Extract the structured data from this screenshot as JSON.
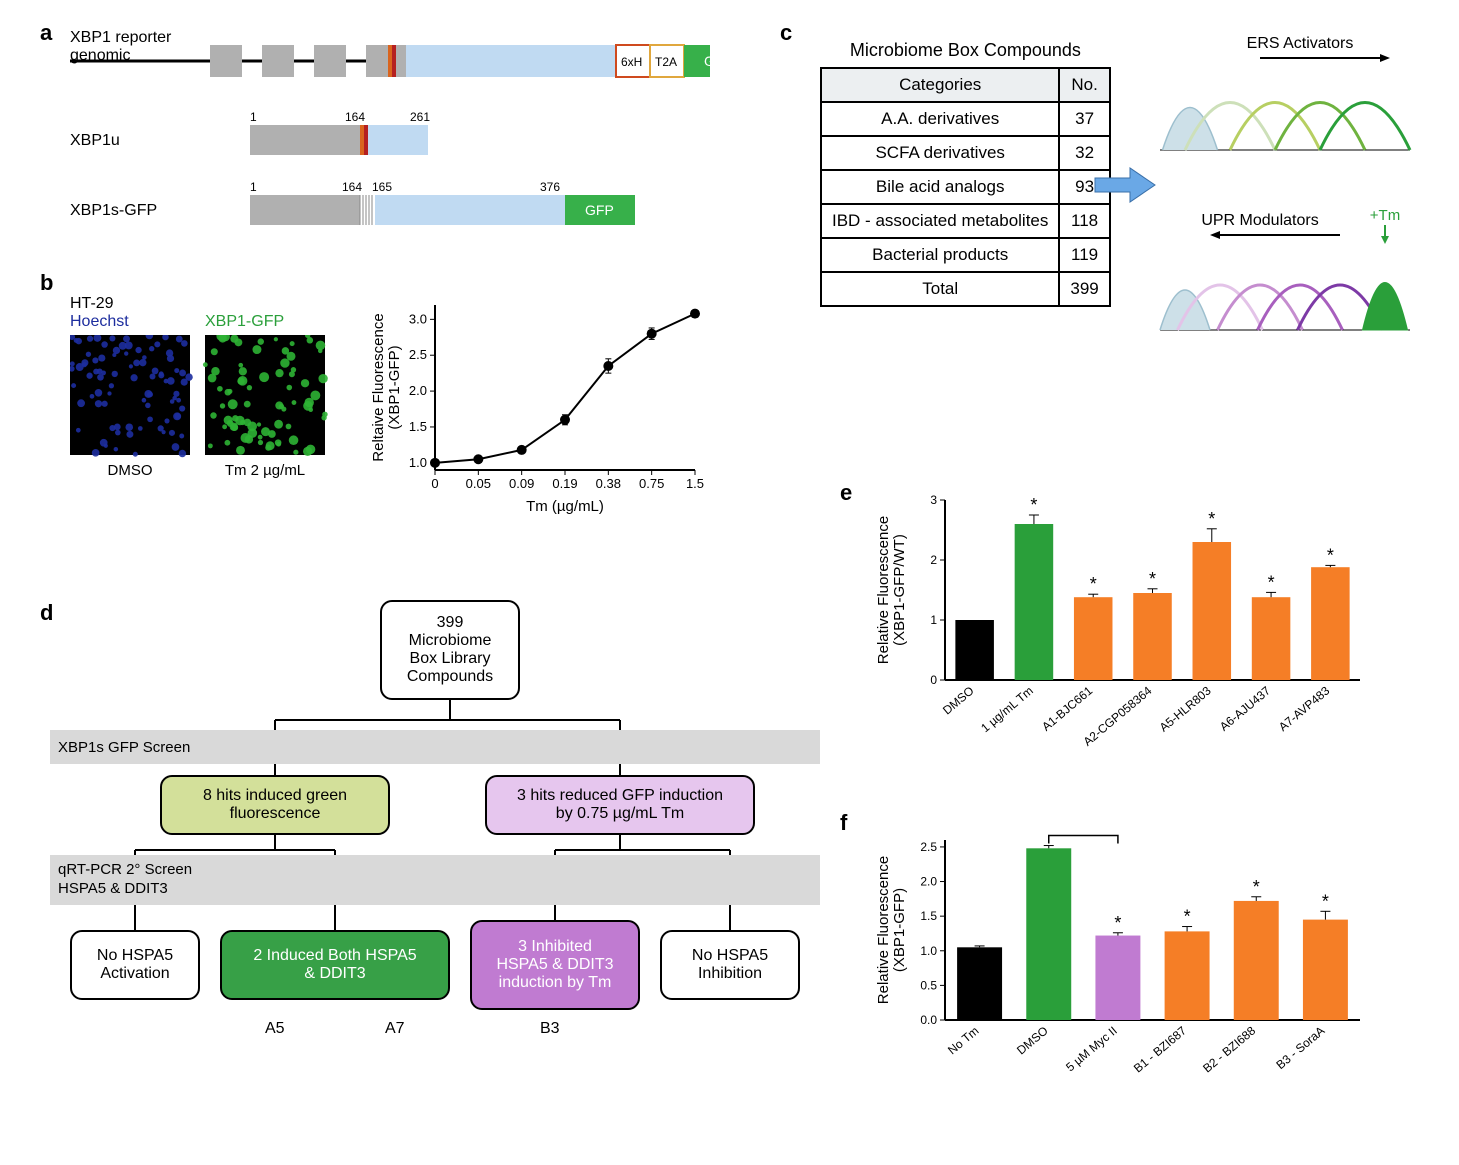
{
  "labels": {
    "a": "a",
    "b": "b",
    "c": "c",
    "d": "d",
    "e": "e",
    "f": "f"
  },
  "panel_a": {
    "tracks": [
      {
        "label": "XBP1 reporter\ngenomic"
      },
      {
        "label": "XBP1u"
      },
      {
        "label": "XBP1s-GFP"
      }
    ],
    "tags": {
      "sixH": "6xH",
      "T2A": "T2A",
      "GFP": "GFP"
    },
    "coords": {
      "n1": "1",
      "n164": "164",
      "n165": "165",
      "n261": "261",
      "n376": "376"
    },
    "colors": {
      "exon_grey": "#b0b0b0",
      "light_blue": "#c0daf2",
      "gfp_green": "#37b04a",
      "orange": "#d9641e",
      "red": "#b52020",
      "sixH_border": "#cf4a1e",
      "t2a_border": "#e0a73d",
      "line": "#000000"
    }
  },
  "panel_b": {
    "img_labels": {
      "cell": "HT-29",
      "hoechst": "Hoechst",
      "gfp": "XBP1-GFP",
      "dmso": "DMSO",
      "tm": "Tm  2 µg/mL"
    },
    "img_colors": {
      "blue": "#1d2d9e",
      "green": "#2db334",
      "black": "#000"
    },
    "chart": {
      "type": "line",
      "x_categories": [
        "0",
        "0.05",
        "0.09",
        "0.19",
        "0.38",
        "0.75",
        "1.5"
      ],
      "y": [
        1.0,
        1.05,
        1.18,
        1.6,
        2.35,
        2.8,
        3.08
      ],
      "y_err": [
        0.03,
        0.04,
        0.04,
        0.07,
        0.1,
        0.08,
        0.05
      ],
      "ylim": [
        0.9,
        3.2
      ],
      "yticks": [
        1.0,
        1.5,
        2.0,
        2.5,
        3.0
      ],
      "xlabel": "Tm (µg/mL)",
      "ylabel": "Reltaive Fluorescence\n(XBP1-GFP)",
      "label_fontsize": 15,
      "tick_fontsize": 13,
      "marker": "circle",
      "marker_size": 5,
      "line_width": 2,
      "color": "#000000"
    }
  },
  "panel_c": {
    "table_title": "Microbiome Box Compounds",
    "columns": [
      "Categories",
      "No."
    ],
    "rows": [
      [
        "A.A. derivatives",
        "37"
      ],
      [
        "SCFA derivatives",
        "32"
      ],
      [
        "Bile acid analogs",
        "93"
      ],
      [
        "IBD - associated metabolites",
        "118"
      ],
      [
        "Bacterial products",
        "119"
      ],
      [
        "Total",
        "399"
      ]
    ],
    "arrow_color": "#6aa8e6",
    "sketch": {
      "title_top": "ERS Activators",
      "title_bot": "UPR Modulators",
      "tm_label": "+Tm",
      "top_colors": [
        "#cde0b9",
        "#b7cf62",
        "#6fb33f",
        "#2a9f3a"
      ],
      "bot_colors": [
        "#e3c3e8",
        "#c58dcf",
        "#a85fbe",
        "#7d3aa6"
      ],
      "tm_fill": "#2a9f3a",
      "base_fill": "#cde0e8"
    }
  },
  "panel_d": {
    "band1_text": "XBP1s GFP Screen",
    "band2_text": "qRT-PCR 2° Screen\nHSPA5 & DDIT3",
    "boxes": {
      "root": "399\nMicrobiome\nBox Library\nCompounds",
      "l1a": "8 hits induced green\nfluorescence",
      "l1b": "3 hits reduced GFP induction\nby 0.75 µg/mL Tm",
      "l2a": "No HSPA5\nActivation",
      "l2b": "2 Induced Both HSPA5\n& DDIT3",
      "l2c": "3 Inhibited\nHSPA5 & DDIT3\ninduction by Tm",
      "l2d": "No HSPA5\nInhibition"
    },
    "bottom_labels": {
      "a5": "A5",
      "a7": "A7",
      "b3": "B3"
    },
    "colors": {
      "l1a_bg": "#d3e09a",
      "l1b_bg": "#e6c6ee",
      "l2b_bg": "#37a047",
      "l2c_bg": "#c07bd1",
      "band": "#d9d9d9"
    }
  },
  "panel_e": {
    "type": "bar",
    "categories": [
      "DMSO",
      "1 µg/mL Tm",
      "A1-BJC661",
      "A2-CGP058364",
      "A5-HLR803",
      "A6-AJU437",
      "A7-AVP483"
    ],
    "values": [
      1.0,
      2.6,
      1.38,
      1.45,
      2.3,
      1.38,
      1.88
    ],
    "errors": [
      0,
      0.15,
      0.05,
      0.07,
      0.22,
      0.08,
      0.03
    ],
    "stars": [
      false,
      true,
      true,
      true,
      true,
      true,
      true
    ],
    "colors": [
      "#000000",
      "#2a9f3a",
      "#f57e26",
      "#f57e26",
      "#f57e26",
      "#f57e26",
      "#f57e26"
    ],
    "ylim": [
      0,
      3
    ],
    "yticks": [
      0,
      1,
      2,
      3
    ],
    "ylabel": "Relative Fluorescence\n(XBP1-GFP/WT)",
    "label_fontsize": 15,
    "tick_fontsize": 12,
    "bar_width": 0.65
  },
  "panel_f": {
    "type": "bar",
    "categories": [
      "No Tm",
      "DMSO",
      "5 µM Myc II",
      "B1 - BZI687",
      "B2 - BZI688",
      "B3 - SoraA"
    ],
    "values": [
      1.05,
      2.48,
      1.22,
      1.28,
      1.72,
      1.45
    ],
    "errors": [
      0.02,
      0.04,
      0.04,
      0.07,
      0.06,
      0.12
    ],
    "stars": [
      false,
      false,
      true,
      true,
      true,
      true
    ],
    "bracket": {
      "from": 1,
      "to": 2
    },
    "colors": [
      "#000000",
      "#2a9f3a",
      "#c07bd1",
      "#f57e26",
      "#f57e26",
      "#f57e26"
    ],
    "ylim": [
      0,
      2.6
    ],
    "yticks": [
      0,
      0.5,
      1.0,
      1.5,
      2.0,
      2.5
    ],
    "ylabel": "Relative  Fluorescence\n(XBP1-GFP)",
    "label_fontsize": 15,
    "tick_fontsize": 12,
    "bar_width": 0.65
  }
}
